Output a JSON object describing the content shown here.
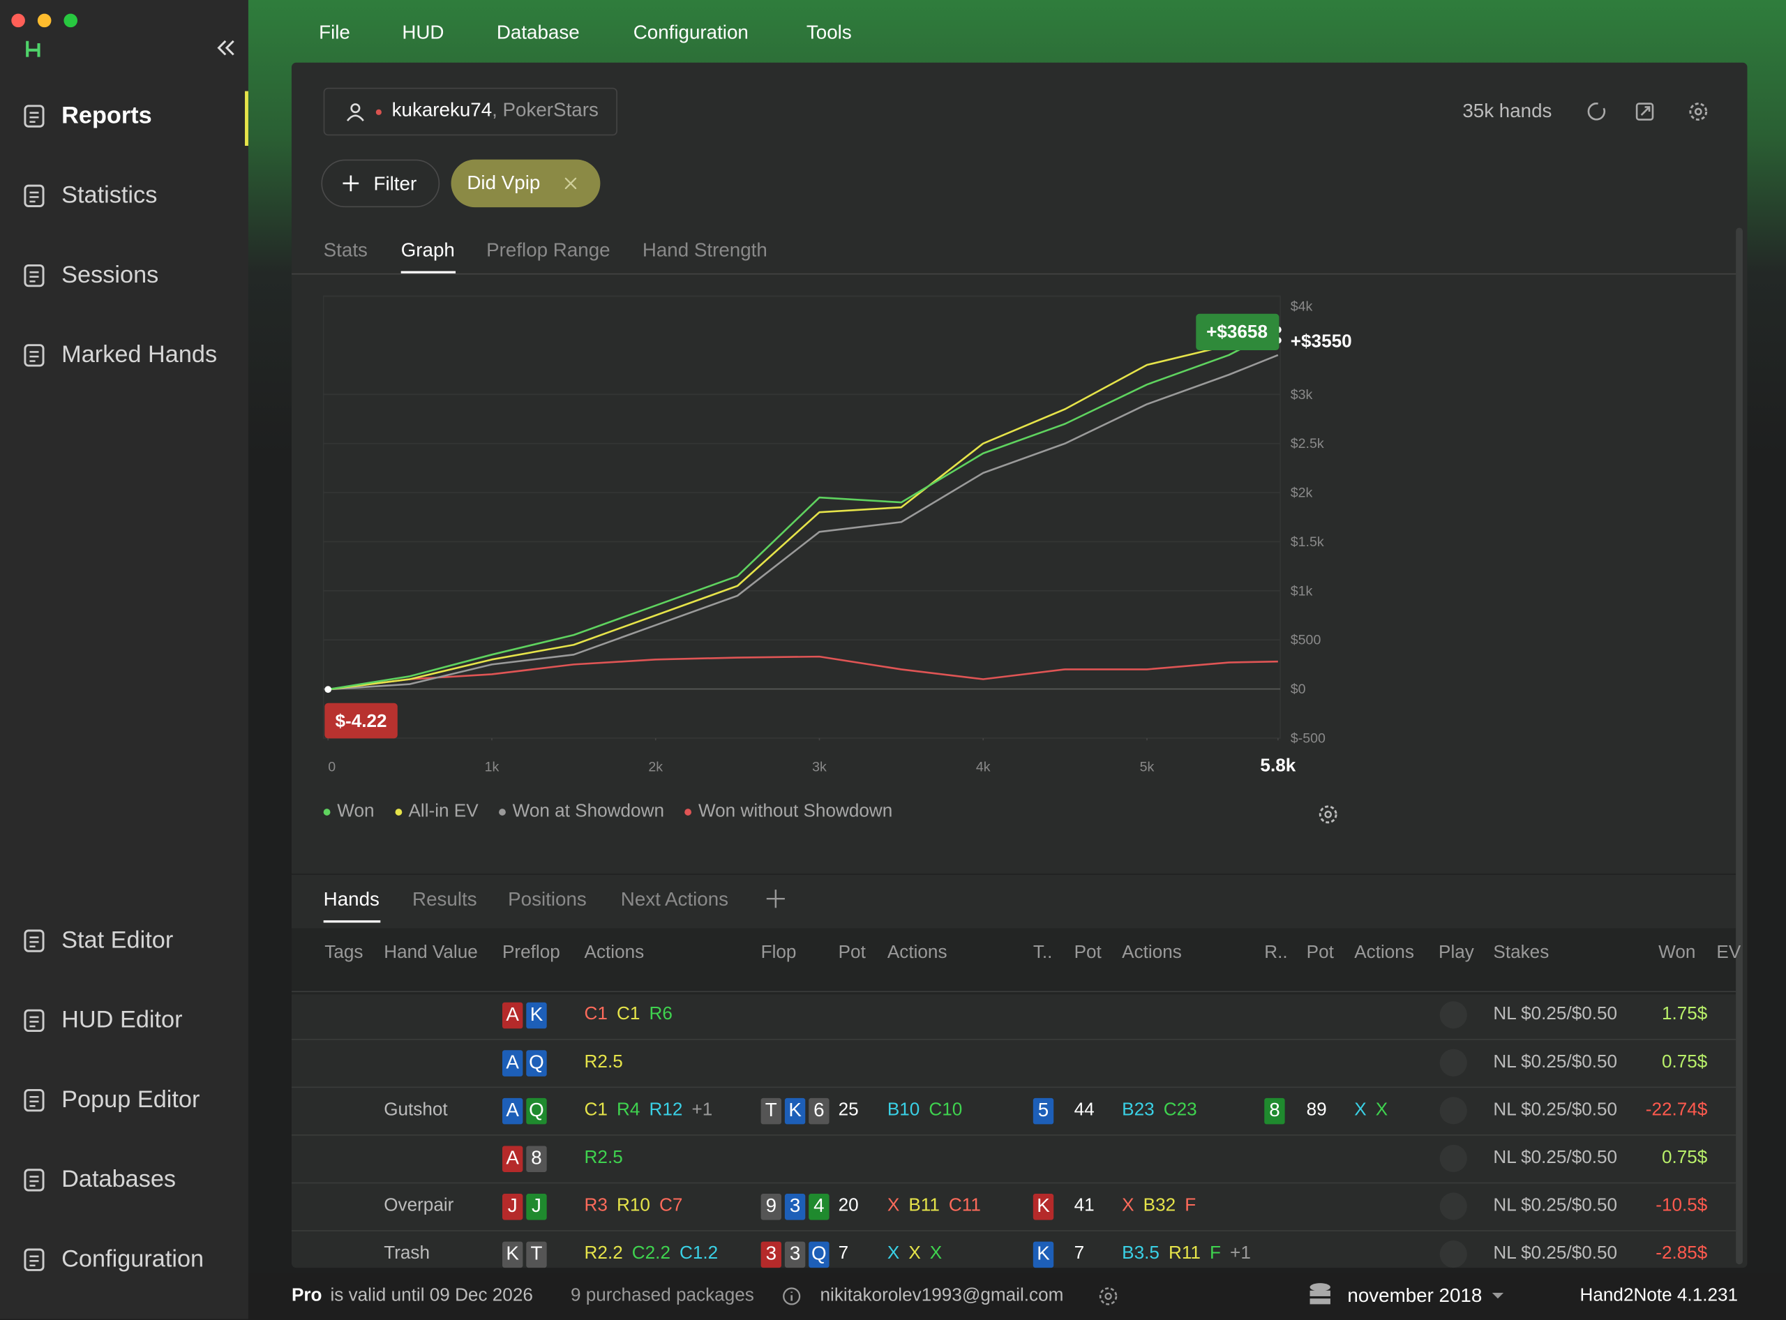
{
  "menu": [
    "File",
    "HUD",
    "Database",
    "Configuration",
    "Tools"
  ],
  "sidebar": {
    "top": [
      "Reports",
      "Statistics",
      "Sessions",
      "Marked Hands"
    ],
    "bottom": [
      "Stat Editor",
      "HUD Editor",
      "Popup Editor",
      "Databases",
      "Configuration"
    ]
  },
  "report": {
    "player": "kukareku74",
    "site": ", PokerStars",
    "hands_count": "35k hands",
    "filter_button": "Filter",
    "filter_chip": "Did Vpip",
    "tabs": [
      "Stats",
      "Graph",
      "Preflop Range",
      "Hand Strength"
    ]
  },
  "chart_data": {
    "type": "line",
    "x": [
      0,
      500,
      1000,
      1500,
      2000,
      2500,
      3000,
      3500,
      4000,
      4500,
      5000,
      5500,
      5800
    ],
    "series": [
      {
        "name": "Won",
        "color": "#5fd35f",
        "values": [
          -4.22,
          130,
          350,
          550,
          850,
          1150,
          1950,
          1900,
          2400,
          2700,
          3100,
          3400,
          3658
        ]
      },
      {
        "name": "All-in EV",
        "color": "#e6e44a",
        "values": [
          -4.22,
          100,
          300,
          450,
          750,
          1050,
          1800,
          1850,
          2500,
          2850,
          3300,
          3500,
          3550
        ]
      },
      {
        "name": "Won at Showdown",
        "color": "#9a9a9a",
        "values": [
          -4.22,
          50,
          250,
          350,
          650,
          950,
          1600,
          1700,
          2200,
          2500,
          2900,
          3200,
          3400
        ]
      },
      {
        "name": "Won without Showdown",
        "color": "#e05555",
        "values": [
          -4.22,
          100,
          150,
          250,
          300,
          320,
          330,
          200,
          100,
          200,
          200,
          270,
          280
        ]
      }
    ],
    "xlim": [
      0,
      5800
    ],
    "xticks": [
      0,
      {
        "value": 1000,
        "label": "1k"
      },
      {
        "value": 2000,
        "label": "2k"
      },
      {
        "value": 3000,
        "label": "3k"
      },
      {
        "value": 4000,
        "label": "4k"
      },
      {
        "value": 5000,
        "label": "5k"
      },
      {
        "value": 5800,
        "label": "5.8k"
      }
    ],
    "ylim": [
      -500,
      4000
    ],
    "yticks": [
      {
        "value": -500,
        "label": "$-500"
      },
      {
        "value": 0,
        "label": "$0"
      },
      {
        "value": 500,
        "label": "$500"
      },
      {
        "value": 1000,
        "label": "$1k"
      },
      {
        "value": 1500,
        "label": "$1.5k"
      },
      {
        "value": 2000,
        "label": "$2k"
      },
      {
        "value": 2500,
        "label": "$2.5k"
      },
      {
        "value": 3000,
        "label": "$3k"
      },
      {
        "value": 4000,
        "label": "$4k"
      }
    ],
    "grid": true,
    "annotations": [
      {
        "text": "+$3550",
        "value": 3550,
        "series": 1
      },
      {
        "text": "+$3658",
        "value": 3658,
        "series": 0
      },
      {
        "text": "$-4.22",
        "value": -4.22,
        "series": 0
      }
    ]
  },
  "table": {
    "tabs": [
      "Hands",
      "Results",
      "Positions",
      "Next Actions"
    ],
    "columns": [
      "Tags",
      "Hand Value",
      "Preflop",
      "Actions",
      "Flop",
      "Pot",
      "Actions",
      "T..",
      "Pot",
      "Actions",
      "R..",
      "Pot",
      "Actions",
      "Play",
      "Stakes",
      "Won",
      "EV"
    ],
    "rows": [
      {
        "preflop": [
          {
            "rank": "A",
            "color": "#b52a2a"
          },
          {
            "rank": "K",
            "color": "#1d5fb8"
          }
        ],
        "preflop_actions": [
          {
            "text": "C1",
            "color": "#ff6b5b"
          },
          {
            "text": "C1",
            "color": "#e6e44a"
          },
          {
            "text": "R6",
            "color": "#3fd34f"
          }
        ],
        "stakes": "NL $0.25/$0.50",
        "won": "1.75$",
        "won_color": "#b9f06a"
      },
      {
        "preflop": [
          {
            "rank": "A",
            "color": "#1d5fb8"
          },
          {
            "rank": "Q",
            "color": "#1d5fb8"
          }
        ],
        "preflop_actions": [
          {
            "text": "R2.5",
            "color": "#e6e44a"
          }
        ],
        "stakes": "NL $0.25/$0.50",
        "won": "0.75$",
        "won_color": "#b9f06a"
      },
      {
        "hand_value": "Gutshot",
        "preflop": [
          {
            "rank": "A",
            "color": "#1d5fb8"
          },
          {
            "rank": "Q",
            "color": "#1f8a2e"
          }
        ],
        "preflop_actions": [
          {
            "text": "C1",
            "color": "#e6e44a"
          },
          {
            "text": "R4",
            "color": "#3fd34f"
          },
          {
            "text": "R12",
            "color": "#3ad1e6"
          },
          {
            "text": "+1",
            "color": "#9a9a9a"
          }
        ],
        "flop": [
          {
            "rank": "T",
            "color": "#555555"
          },
          {
            "rank": "K",
            "color": "#1d5fb8"
          },
          {
            "rank": "6",
            "color": "#555555"
          }
        ],
        "flop_pot": 25,
        "flop_actions": [
          {
            "text": "B10",
            "color": "#3ad1e6"
          },
          {
            "text": "C10",
            "color": "#3fd34f"
          }
        ],
        "turn": [
          {
            "rank": "5",
            "color": "#1d5fb8"
          }
        ],
        "turn_pot": 44,
        "turn_actions": [
          {
            "text": "B23",
            "color": "#3ad1e6"
          },
          {
            "text": "C23",
            "color": "#3fd34f"
          }
        ],
        "river": [
          {
            "rank": "8",
            "color": "#1f8a2e"
          }
        ],
        "river_pot": 89,
        "river_actions": [
          {
            "text": "X",
            "color": "#3ad1e6"
          },
          {
            "text": "X",
            "color": "#3fd34f"
          }
        ],
        "stakes": "NL $0.25/$0.50",
        "won": "-22.74$",
        "won_color": "#ff5a4e"
      },
      {
        "preflop": [
          {
            "rank": "A",
            "color": "#b52a2a"
          },
          {
            "rank": "8",
            "color": "#555555"
          }
        ],
        "preflop_actions": [
          {
            "text": "R2.5",
            "color": "#3fd34f"
          }
        ],
        "stakes": "NL $0.25/$0.50",
        "won": "0.75$",
        "won_color": "#b9f06a"
      },
      {
        "hand_value": "Overpair",
        "preflop": [
          {
            "rank": "J",
            "color": "#b52a2a"
          },
          {
            "rank": "J",
            "color": "#1f8a2e"
          }
        ],
        "preflop_actions": [
          {
            "text": "R3",
            "color": "#ff6b5b"
          },
          {
            "text": "R10",
            "color": "#e6e44a"
          },
          {
            "text": "C7",
            "color": "#ff6b5b"
          }
        ],
        "flop": [
          {
            "rank": "9",
            "color": "#555555"
          },
          {
            "rank": "3",
            "color": "#1d5fb8"
          },
          {
            "rank": "4",
            "color": "#1f8a2e"
          }
        ],
        "flop_pot": 20,
        "flop_actions": [
          {
            "text": "X",
            "color": "#ff6b5b"
          },
          {
            "text": "B11",
            "color": "#e6e44a"
          },
          {
            "text": "C11",
            "color": "#ff6b5b"
          }
        ],
        "turn": [
          {
            "rank": "K",
            "color": "#b52a2a"
          }
        ],
        "turn_pot": 41,
        "turn_actions": [
          {
            "text": "X",
            "color": "#ff6b5b"
          },
          {
            "text": "B32",
            "color": "#e6e44a"
          },
          {
            "text": "F",
            "color": "#ff6b5b"
          }
        ],
        "stakes": "NL $0.25/$0.50",
        "won": "-10.5$",
        "won_color": "#ff5a4e"
      },
      {
        "hand_value": "Trash",
        "preflop": [
          {
            "rank": "K",
            "color": "#555555"
          },
          {
            "rank": "T",
            "color": "#555555"
          }
        ],
        "preflop_actions": [
          {
            "text": "R2.2",
            "color": "#e6e44a"
          },
          {
            "text": "C2.2",
            "color": "#3fd34f"
          },
          {
            "text": "C1.2",
            "color": "#3ad1e6"
          }
        ],
        "flop": [
          {
            "rank": "3",
            "color": "#b52a2a"
          },
          {
            "rank": "3",
            "color": "#555555"
          },
          {
            "rank": "Q",
            "color": "#1d5fb8"
          }
        ],
        "flop_pot": 7,
        "flop_actions": [
          {
            "text": "X",
            "color": "#3ad1e6"
          },
          {
            "text": "X",
            "color": "#e6e44a"
          },
          {
            "text": "X",
            "color": "#3fd34f"
          }
        ],
        "turn": [
          {
            "rank": "K",
            "color": "#1d5fb8"
          }
        ],
        "turn_pot": 7,
        "turn_actions": [
          {
            "text": "B3.5",
            "color": "#3ad1e6"
          },
          {
            "text": "R11",
            "color": "#e6e44a"
          },
          {
            "text": "F",
            "color": "#3fd34f"
          },
          {
            "text": "+1",
            "color": "#9a9a9a"
          }
        ],
        "stakes": "NL $0.25/$0.50",
        "won": "-2.85$",
        "won_color": "#ff5a4e"
      }
    ]
  },
  "status": {
    "plan": "Pro",
    "validity": "is valid until 09 Dec 2026",
    "packages": "9 purchased packages",
    "email": "nikitakorolev1993@gmail.com",
    "database": "november 2018",
    "version": "Hand2Note 4.1.231"
  }
}
